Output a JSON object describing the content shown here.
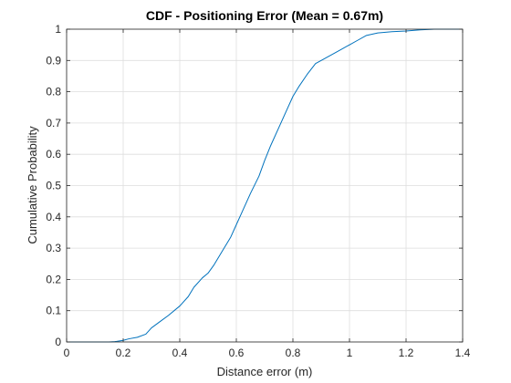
{
  "chart_data": {
    "type": "line",
    "title": "CDF - Positioning Error  (Mean = 0.67m)",
    "xlabel": "Distance error (m)",
    "ylabel": "Cumulative Probability",
    "xlim": [
      0,
      1.4
    ],
    "ylim": [
      0,
      1
    ],
    "xticks": [
      0,
      0.2,
      0.4,
      0.6,
      0.8,
      1,
      1.2,
      1.4
    ],
    "xtick_labels": [
      "0",
      "0.2",
      "0.4",
      "0.6",
      "0.8",
      "1",
      "1.2",
      "1.4"
    ],
    "yticks": [
      0,
      0.1,
      0.2,
      0.3,
      0.4,
      0.5,
      0.6,
      0.7,
      0.8,
      0.9,
      1
    ],
    "ytick_labels": [
      "0",
      "0.1",
      "0.2",
      "0.3",
      "0.4",
      "0.5",
      "0.6",
      "0.7",
      "0.8",
      "0.9",
      "1"
    ],
    "grid": true,
    "line_color": "#0072BD",
    "series": [
      {
        "x": [
          0.0,
          0.05,
          0.1,
          0.15,
          0.17,
          0.2,
          0.22,
          0.25,
          0.28,
          0.3,
          0.33,
          0.36,
          0.4,
          0.43,
          0.45,
          0.48,
          0.5,
          0.52,
          0.55,
          0.58,
          0.6,
          0.62,
          0.65,
          0.68,
          0.7,
          0.72,
          0.75,
          0.78,
          0.8,
          0.82,
          0.85,
          0.88,
          0.9,
          0.93,
          0.96,
          1.0,
          1.03,
          1.06,
          1.1,
          1.15,
          1.2,
          1.25,
          1.3,
          1.35,
          1.4
        ],
        "y": [
          0.0,
          0.0,
          0.0,
          0.0,
          0.001,
          0.005,
          0.01,
          0.015,
          0.025,
          0.045,
          0.065,
          0.085,
          0.115,
          0.145,
          0.175,
          0.205,
          0.22,
          0.245,
          0.29,
          0.335,
          0.375,
          0.415,
          0.475,
          0.53,
          0.58,
          0.625,
          0.685,
          0.745,
          0.785,
          0.815,
          0.855,
          0.89,
          0.9,
          0.915,
          0.93,
          0.95,
          0.965,
          0.98,
          0.988,
          0.992,
          0.994,
          0.998,
          1.0,
          1.0,
          1.0
        ]
      }
    ]
  }
}
